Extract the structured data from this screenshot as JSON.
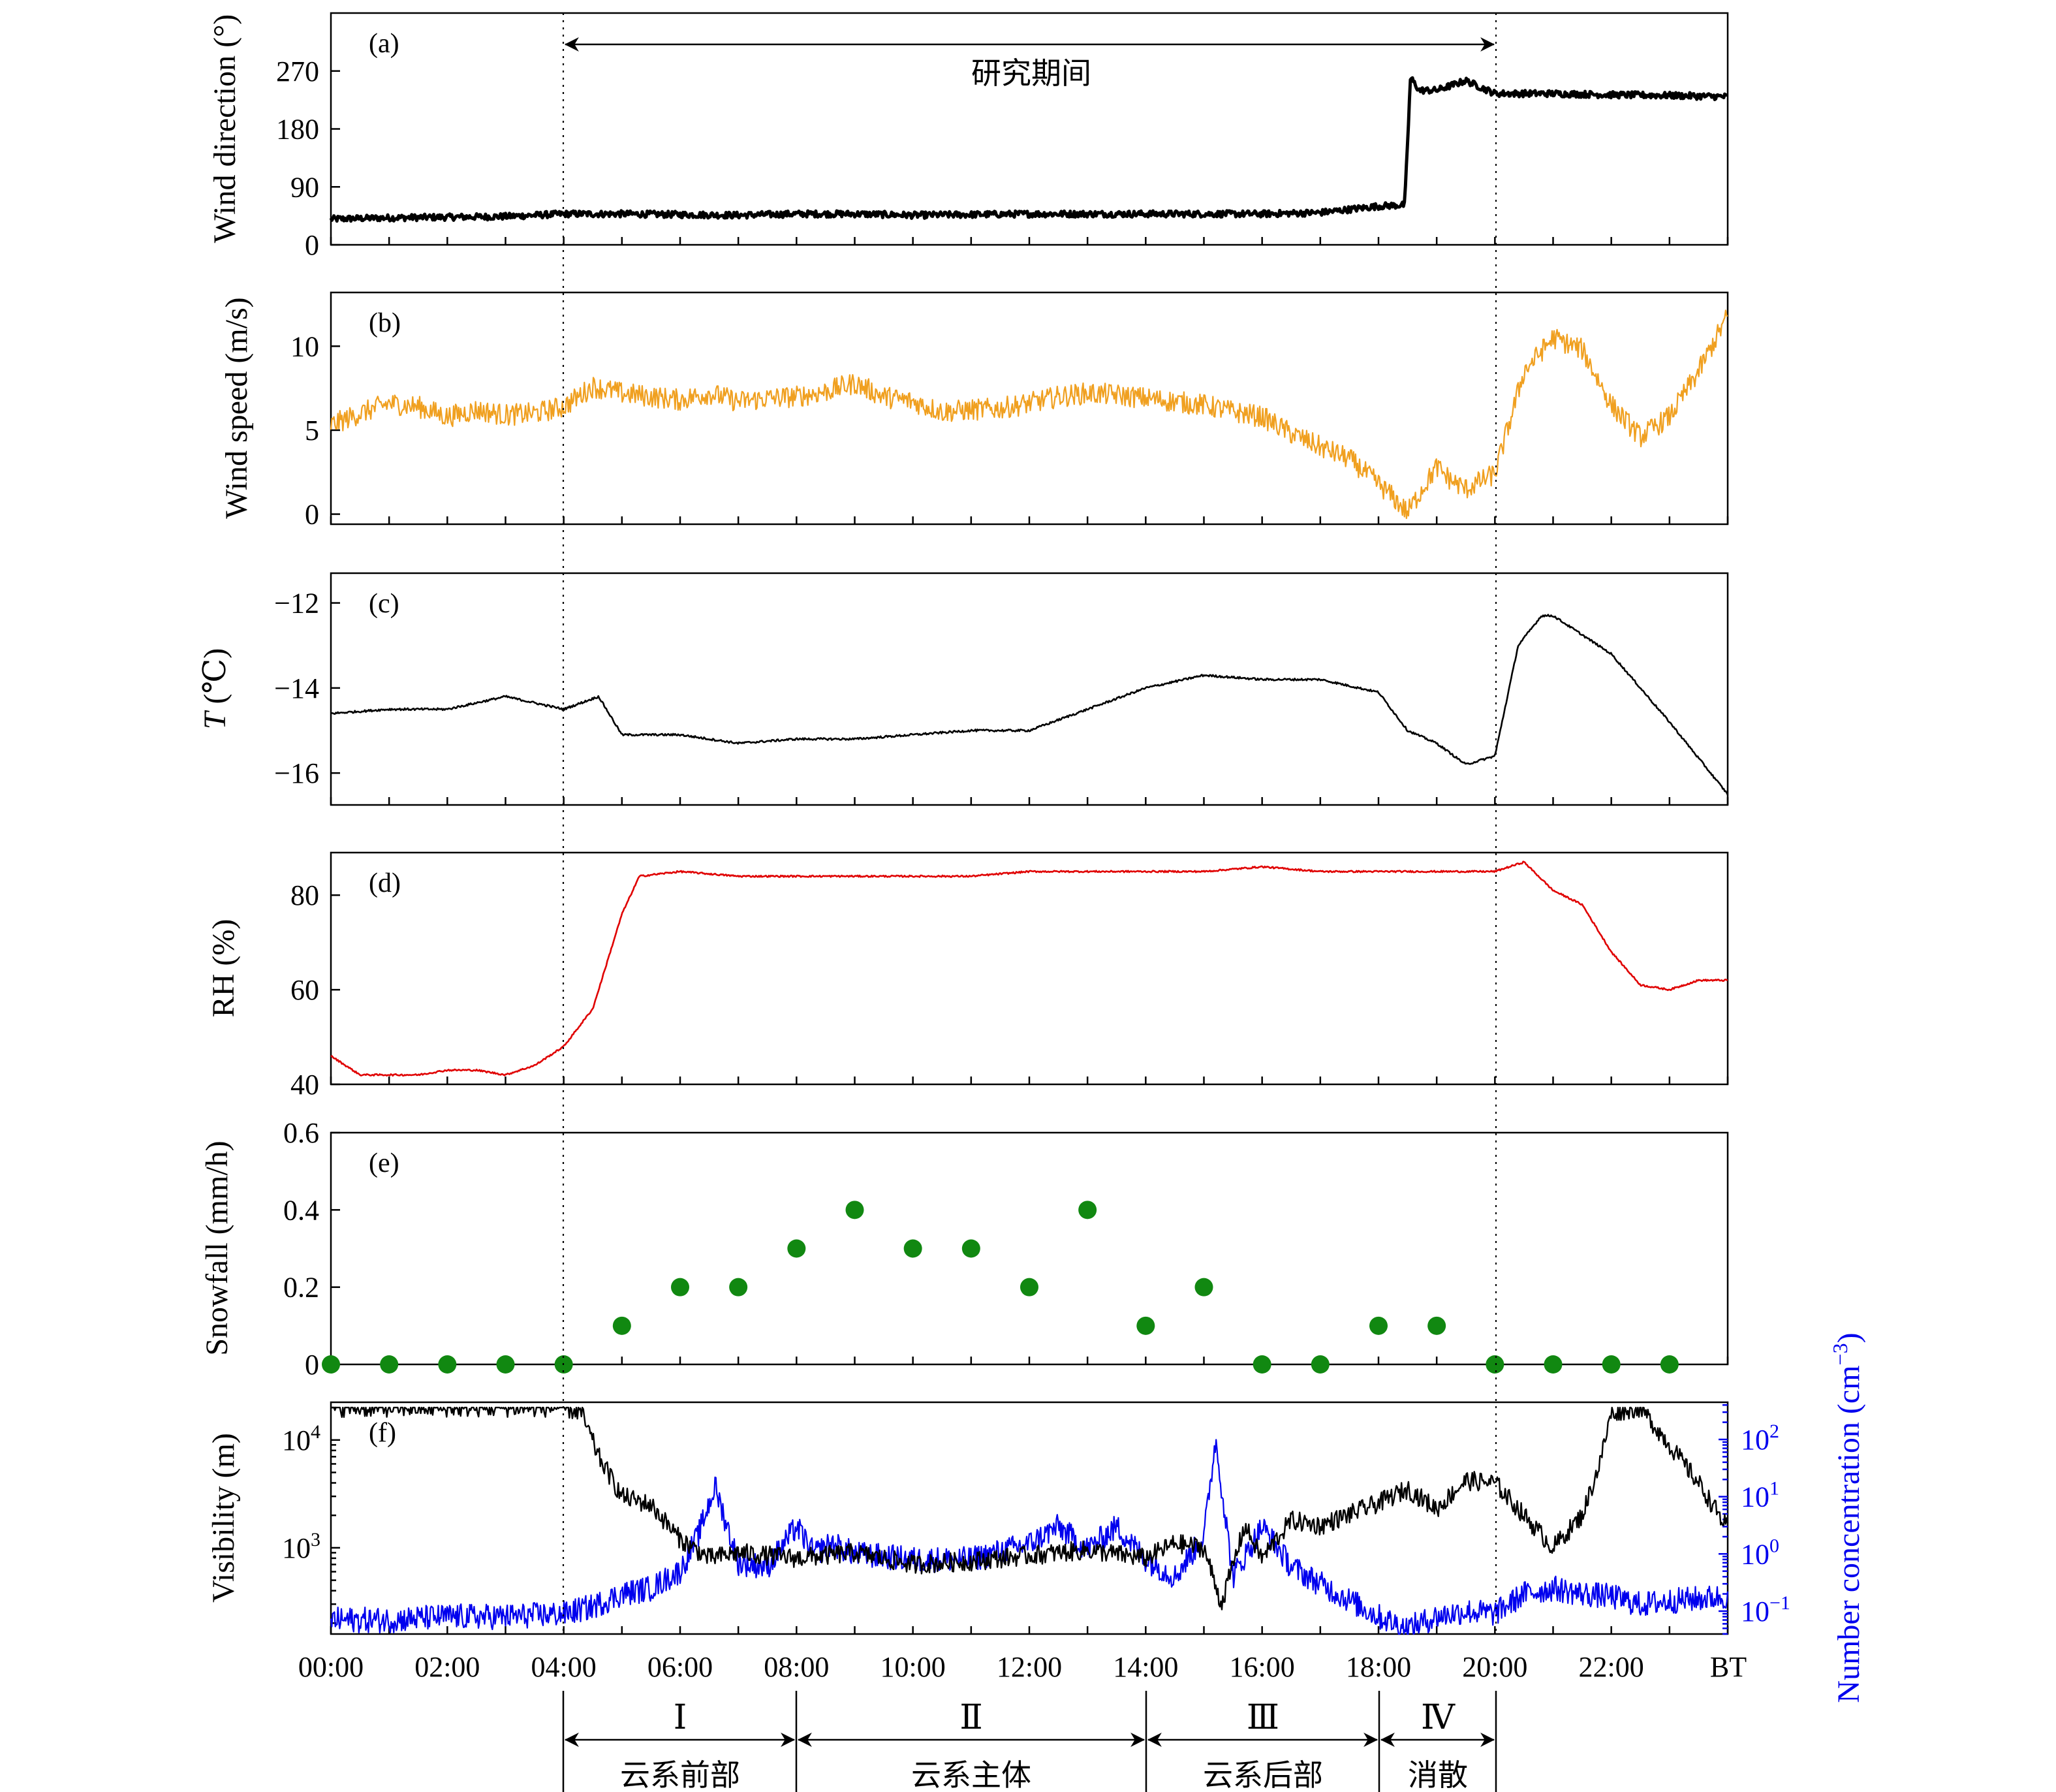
{
  "chart_data": [
    {
      "panel": "(a)",
      "type": "line",
      "ylabel": "Wind direction (°)",
      "yticks": [
        "0",
        "90",
        "180",
        "270"
      ],
      "ylim": [
        0,
        360
      ],
      "annotation": "研究期间",
      "series": [
        {
          "color": "#000000",
          "x": [
            0,
            1,
            2,
            3,
            4,
            5,
            6,
            7,
            8,
            9,
            10,
            11,
            12,
            13,
            14,
            15,
            16,
            17,
            18,
            18.45,
            18.5,
            18.55,
            18.7,
            19,
            19.5,
            20,
            21,
            22,
            23,
            24
          ],
          "y": [
            40,
            42,
            43,
            44,
            48,
            48,
            47,
            46,
            48,
            48,
            46,
            47,
            48,
            48,
            48,
            48,
            48,
            50,
            60,
            62,
            160,
            260,
            240,
            240,
            255,
            235,
            235,
            233,
            232,
            230
          ]
        }
      ]
    },
    {
      "panel": "(b)",
      "type": "line",
      "ylabel": "Wind speed (m/s)",
      "yticks": [
        "0",
        "5",
        "10"
      ],
      "ylim": [
        -0.6,
        13.2
      ],
      "series": [
        {
          "color": "#f0a020",
          "x": [
            0,
            0.5,
            1,
            1.5,
            2,
            2.5,
            3,
            3.5,
            4,
            4.5,
            5,
            5.5,
            6,
            6.5,
            7,
            7.5,
            8,
            8.5,
            9,
            9.5,
            10,
            10.5,
            11,
            11.5,
            12,
            12.5,
            13,
            13.5,
            14,
            14.5,
            15,
            15.5,
            16,
            16.5,
            17,
            17.5,
            18,
            18.25,
            18.5,
            18.75,
            19,
            19.25,
            19.5,
            20,
            20.5,
            21,
            21.5,
            22,
            22.5,
            23,
            23.5,
            24
          ],
          "y": [
            5.3,
            6.0,
            6.6,
            6.4,
            5.8,
            6.2,
            5.9,
            6.0,
            6.4,
            7.6,
            7.2,
            7.0,
            6.8,
            7.2,
            6.7,
            6.9,
            7.0,
            7.3,
            7.8,
            7.0,
            6.7,
            6.1,
            6.2,
            6.3,
            6.6,
            7.0,
            7.2,
            7.1,
            6.9,
            6.7,
            6.5,
            6.1,
            5.8,
            4.8,
            4.0,
            3.3,
            1.8,
            1.0,
            0.1,
            1.5,
            2.8,
            2.0,
            1.5,
            2.4,
            8.5,
            10.5,
            9.8,
            6.5,
            4.6,
            5.8,
            8.5,
            11.8
          ]
        }
      ]
    },
    {
      "panel": "(c)",
      "type": "line",
      "ylabel_italic": "T",
      "ylabel_rest": " (℃)",
      "yticks": [
        "−12",
        "−14",
        "−16"
      ],
      "ylim": [
        -16.75,
        -11.3
      ],
      "series": [
        {
          "color": "#000000",
          "x": [
            0,
            1,
            2,
            3,
            4,
            4.6,
            5.0,
            6,
            7,
            8,
            9,
            10,
            11,
            12,
            13,
            14,
            15,
            16,
            17,
            18,
            18.5,
            19,
            19.5,
            20,
            20.4,
            20.8,
            21,
            22,
            23,
            24
          ],
          "y": [
            -14.6,
            -14.5,
            -14.5,
            -14.2,
            -14.5,
            -14.2,
            -15.1,
            -15.1,
            -15.3,
            -15.2,
            -15.2,
            -15.1,
            -15.0,
            -15.0,
            -14.5,
            -14.0,
            -13.7,
            -13.8,
            -13.8,
            -14.1,
            -15.0,
            -15.3,
            -15.8,
            -15.6,
            -13.0,
            -12.3,
            -12.3,
            -13.2,
            -14.8,
            -16.5
          ]
        }
      ]
    },
    {
      "panel": "(d)",
      "type": "line",
      "ylabel": "RH (%)",
      "yticks": [
        "40",
        "60",
        "80"
      ],
      "ylim": [
        40,
        89
      ],
      "series": [
        {
          "color": "#e00000",
          "x": [
            0,
            0.5,
            1,
            1.5,
            2,
            2.5,
            3,
            3.5,
            4,
            4.5,
            5,
            5.3,
            6,
            7,
            8,
            9,
            10,
            11,
            12,
            13,
            14,
            15,
            16,
            17,
            18,
            19,
            20,
            20.5,
            21,
            21.5,
            22,
            22.5,
            23,
            23.5,
            24
          ],
          "y": [
            46,
            42,
            42,
            42,
            43,
            43,
            42,
            44,
            48,
            56,
            76,
            84,
            85,
            84,
            84,
            84,
            84,
            84,
            85,
            85,
            85,
            85,
            86,
            85,
            85,
            85,
            85,
            87,
            81,
            78,
            68,
            61,
            60,
            62,
            62
          ]
        }
      ]
    },
    {
      "panel": "(e)",
      "type": "scatter",
      "ylabel": "Snowfall (mm/h)",
      "yticks": [
        "0",
        "0.2",
        "0.4",
        "0.6"
      ],
      "ylim": [
        0,
        0.6
      ],
      "series": [
        {
          "color": "#118811",
          "x": [
            0,
            1,
            2,
            3,
            4,
            5,
            6,
            7,
            8,
            9,
            10,
            11,
            12,
            13,
            14,
            15,
            16,
            17,
            18,
            19,
            20,
            21,
            22,
            23
          ],
          "y": [
            0,
            0,
            0,
            0,
            0,
            0.1,
            0.2,
            0.2,
            0.3,
            0.4,
            0.3,
            0.3,
            0.2,
            0.4,
            0.1,
            0.2,
            0,
            0,
            0.1,
            0.1,
            0,
            0,
            0,
            0
          ]
        }
      ]
    },
    {
      "panel": "(f)",
      "type": "line",
      "ylabel": "Visibility (m)",
      "ylabel_right": "Number concentration (cm",
      "ylabel_right_sup": "−3",
      "ylabel_right_close": ")",
      "right_axis_color": "#0000ee",
      "yticks_left": [
        {
          "base": "10",
          "exp": "3"
        },
        {
          "base": "10",
          "exp": "4"
        }
      ],
      "yticks_right": [
        {
          "base": "10",
          "exp": "−1"
        },
        {
          "base": "10",
          "exp": "0"
        },
        {
          "base": "10",
          "exp": "1"
        },
        {
          "base": "10",
          "exp": "2"
        }
      ],
      "ylim_left_log10": [
        2.2,
        4.35
      ],
      "ylim_right_log10": [
        -1.4,
        2.65
      ],
      "xtick_labels": [
        "00:00",
        "02:00",
        "04:00",
        "06:00",
        "08:00",
        "10:00",
        "12:00",
        "14:00",
        "16:00",
        "18:00",
        "20:00",
        "22:00"
      ],
      "xunit": "BT",
      "series": [
        {
          "axis": "left",
          "color": "#000000",
          "x": [
            0,
            4,
            4.3,
            4.6,
            5,
            5.5,
            6,
            6.5,
            7,
            8,
            9,
            10,
            11,
            12,
            13,
            14,
            14.5,
            15,
            15.3,
            15.7,
            16,
            16.5,
            17,
            18,
            18.5,
            19,
            19.5,
            20,
            20.5,
            21,
            21.5,
            21.8,
            22,
            22.5,
            23,
            23.5,
            24
          ],
          "y": [
            20000,
            20000,
            18000,
            7000,
            3000,
            2500,
            1200,
            800,
            900,
            800,
            900,
            700,
            750,
            850,
            950,
            800,
            1100,
            1000,
            300,
            1600,
            800,
            1800,
            1600,
            2600,
            3500,
            2300,
            4200,
            4000,
            2000,
            1000,
            2000,
            6000,
            18000,
            20000,
            9000,
            4000,
            1500
          ]
        },
        {
          "axis": "right",
          "color": "#0000ee",
          "x": [
            0,
            1,
            2,
            3,
            4,
            4.5,
            5,
            5.5,
            6,
            6.3,
            6.6,
            7,
            7.5,
            8,
            8.3,
            8.6,
            9,
            10,
            11,
            12,
            12.5,
            13,
            13.5,
            14,
            14.5,
            15,
            15.2,
            15.5,
            16,
            16.5,
            17,
            18,
            18.5,
            19,
            19.5,
            20,
            20.5,
            21,
            21.5,
            22,
            22.5,
            23,
            24
          ],
          "y": [
            0.07,
            0.07,
            0.08,
            0.08,
            0.09,
            0.12,
            0.2,
            0.25,
            0.5,
            2,
            15,
            0.7,
            0.6,
            3,
            1,
            1.5,
            1,
            0.8,
            0.8,
            1.5,
            3,
            1.2,
            3,
            0.8,
            0.4,
            2,
            100,
            0.4,
            3,
            0.6,
            0.3,
            0.08,
            0.05,
            0.08,
            0.1,
            0.09,
            0.2,
            0.25,
            0.2,
            0.18,
            0.13,
            0.15,
            0.18
          ]
        }
      ]
    }
  ],
  "period_annotation": "研究期间",
  "stages": [
    {
      "roman": "Ⅰ",
      "label": "云系前部"
    },
    {
      "roman": "Ⅱ",
      "label": "云系主体"
    },
    {
      "roman": "Ⅲ",
      "label": "云系后部"
    },
    {
      "roman": "Ⅳ",
      "label": "消散"
    }
  ]
}
